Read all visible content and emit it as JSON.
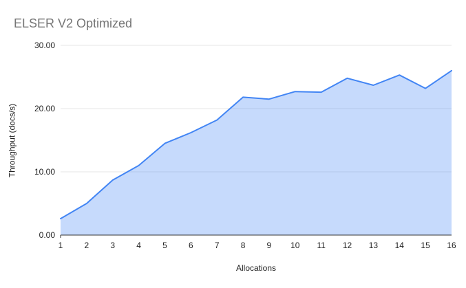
{
  "title": "ELSER V2 Optimized",
  "colors": {
    "title_text": "#757575",
    "axis_text": "#222222",
    "line": "#4285f4",
    "fill": "rgba(66,133,244,0.3)",
    "gridline": "#e6e6e6",
    "axis_line": "#333333",
    "background": "#ffffff"
  },
  "chart_data": {
    "type": "area",
    "title": "ELSER V2 Optimized",
    "xlabel": "Allocations",
    "ylabel": "Throughput (docs/s)",
    "categories": [
      "1",
      "2",
      "3",
      "4",
      "5",
      "6",
      "7",
      "8",
      "9",
      "10",
      "11",
      "12",
      "13",
      "14",
      "15",
      "16"
    ],
    "values": [
      2.6,
      5.0,
      8.7,
      11.0,
      14.5,
      16.2,
      18.2,
      21.8,
      21.5,
      22.7,
      22.6,
      24.8,
      23.7,
      25.3,
      23.2,
      26.0
    ],
    "ylim": [
      0,
      30
    ],
    "ytick_values": [
      0,
      10,
      20,
      30
    ],
    "ytick_labels": [
      "0.00",
      "10.00",
      "20.00",
      "30.00"
    ],
    "grid": true,
    "legend": "none"
  }
}
